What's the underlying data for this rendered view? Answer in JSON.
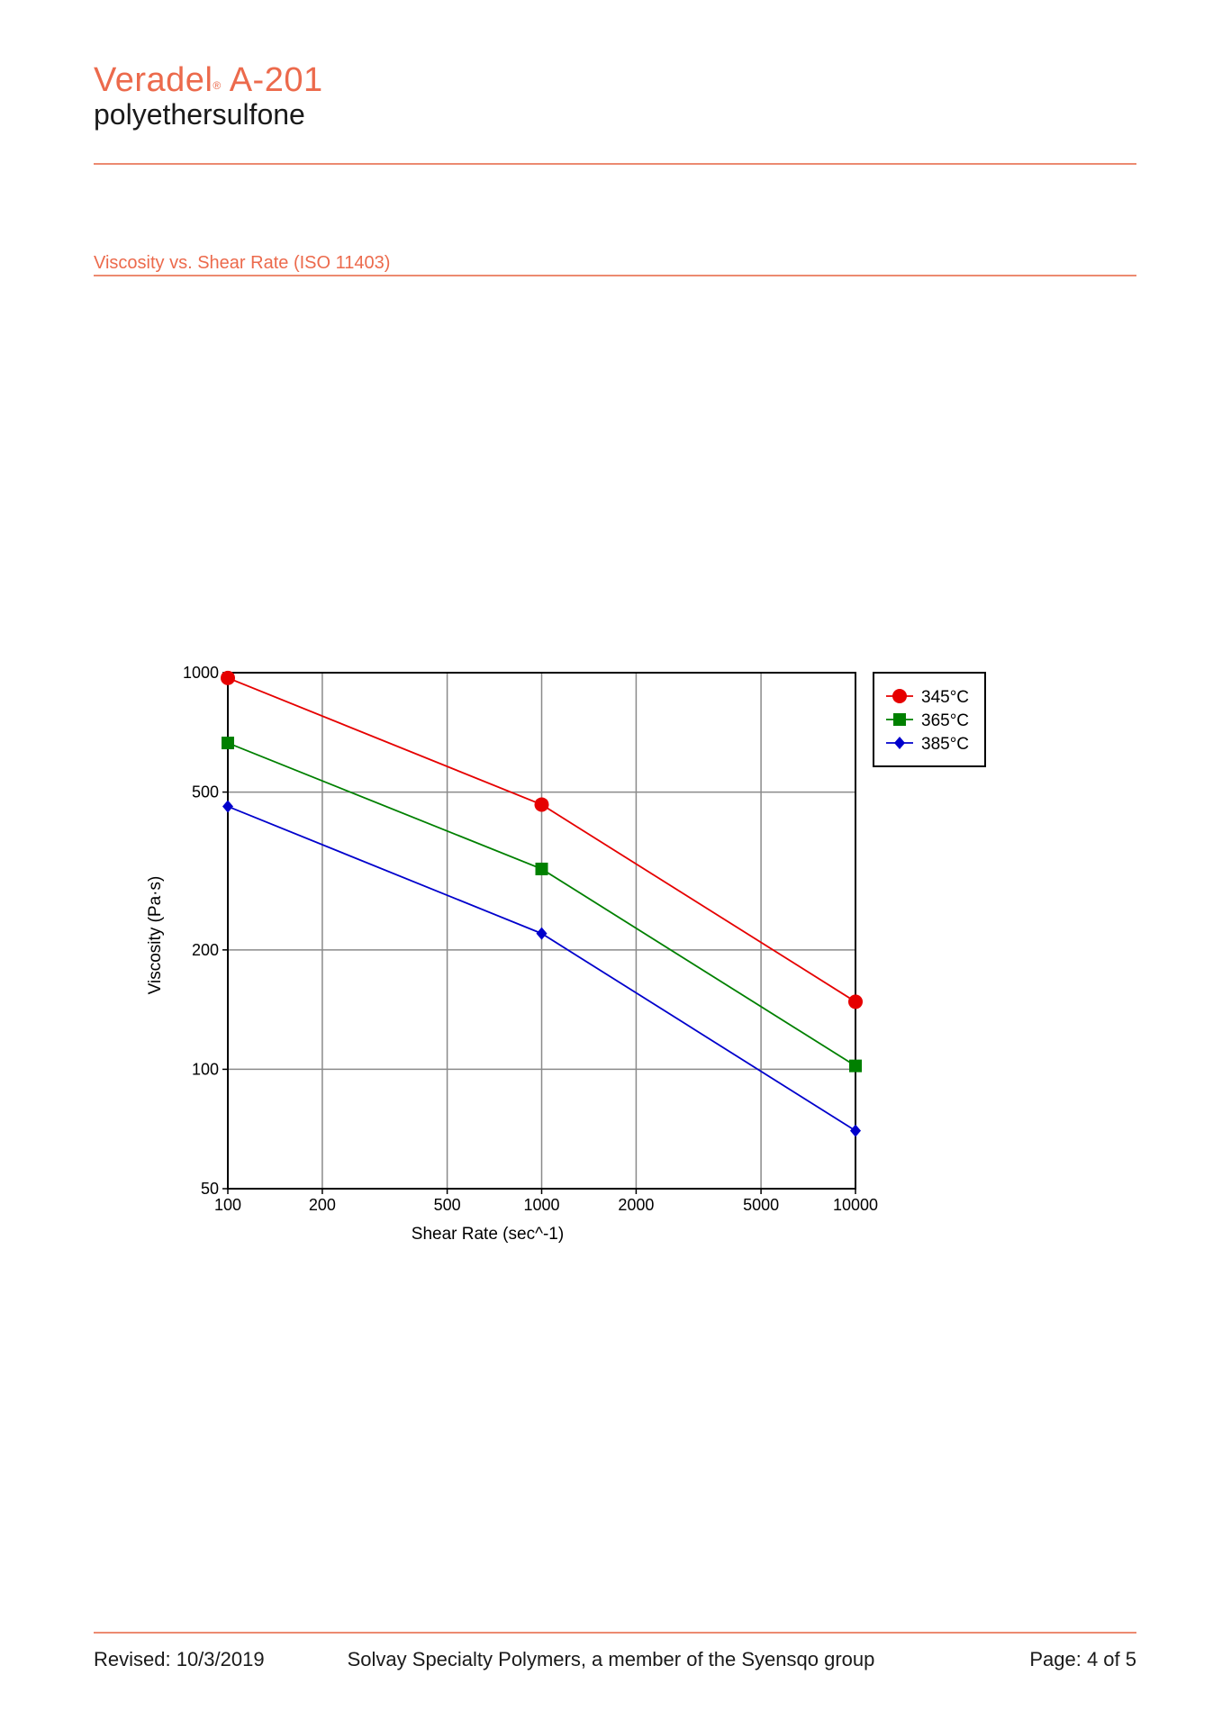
{
  "header": {
    "product_name": "Veradel",
    "trademark": "®",
    "product_code": " A-201",
    "subtitle": "polyethersulfone"
  },
  "section": {
    "title": "Viscosity vs. Shear Rate (ISO 11403)"
  },
  "footer": {
    "revised": "Revised: 10/3/2019",
    "company": "Solvay Specialty Polymers, a member of the Syensqo group",
    "page": "Page: 4 of 5"
  },
  "colors": {
    "accent": "#ec6a4c",
    "series": [
      "#e60000",
      "#008000",
      "#0000cc"
    ]
  },
  "chart_data": {
    "type": "line",
    "xlabel": "Shear Rate (sec^-1)",
    "ylabel": "Viscosity (Pa·s)",
    "xscale": "log",
    "yscale": "log",
    "xlim": [
      100,
      10000
    ],
    "ylim": [
      50,
      1000
    ],
    "xticks": [
      100,
      200,
      500,
      1000,
      2000,
      5000,
      10000
    ],
    "yticks": [
      50,
      100,
      200,
      500,
      1000
    ],
    "grid": true,
    "legend_position": "right",
    "x": [
      100,
      1000,
      10000
    ],
    "series": [
      {
        "name": "345°C",
        "marker": "circle",
        "color": "#e60000",
        "values": [
          970,
          465,
          148
        ]
      },
      {
        "name": "365°C",
        "marker": "square",
        "color": "#008000",
        "values": [
          665,
          320,
          102
        ]
      },
      {
        "name": "385°C",
        "marker": "diamond",
        "color": "#0000cc",
        "values": [
          460,
          220,
          70
        ]
      }
    ]
  }
}
